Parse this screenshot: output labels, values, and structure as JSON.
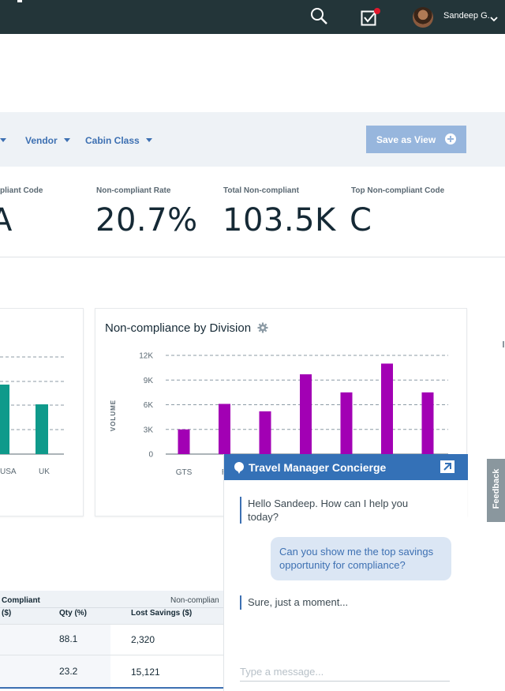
{
  "topbar": {
    "user_name": "Sandeep G.",
    "icons": [
      "search-icon",
      "tasks-check-icon",
      "avatar",
      "chevron-down-icon"
    ],
    "notification_color": "#e0182d"
  },
  "filters": {
    "items": [
      {
        "label": ""
      },
      {
        "label": "Vendor"
      },
      {
        "label": "Cabin Class"
      }
    ],
    "save_view_label": "Save as View"
  },
  "kpis": [
    {
      "label": "pliant Code",
      "value": "A"
    },
    {
      "label": "Non-compliant Rate",
      "value": "20.7%"
    },
    {
      "label": "Total Non-compliant",
      "value": "103.5K"
    },
    {
      "label": "Top Non-compliant Code",
      "value": "C"
    }
  ],
  "left_chart": {
    "categories": [
      "USA",
      "UK"
    ],
    "bar_color": "#0f9a8b"
  },
  "chart": {
    "title": "Non-compliance by Division",
    "ylabel": "VOLUME",
    "yticks": [
      "12K",
      "9K",
      "6K",
      "3K",
      "0"
    ],
    "bar_color": "#a200b4"
  },
  "chart_data": {
    "type": "bar",
    "title": "Non-compliance by Division",
    "ylabel": "VOLUME",
    "xlabel": "",
    "ylim": [
      0,
      12000
    ],
    "categories": [
      "GTS",
      "R",
      "",
      "",
      "",
      "",
      ""
    ],
    "values": [
      3000,
      6100,
      5200,
      9700,
      7500,
      11000,
      7500
    ],
    "grid": true
  },
  "table": {
    "group_headers": [
      "Compliant",
      "Non-complian"
    ],
    "columns": [
      "($)",
      "Qty (%)",
      "Lost Savings ($)"
    ],
    "rows": [
      {
        "qty": "88.1",
        "lost": "2,320"
      },
      {
        "qty": "23.2",
        "lost": "15,121"
      }
    ]
  },
  "concierge": {
    "title": "Travel Manager Concierge",
    "messages": [
      {
        "from": "bot",
        "text": "Hello Sandeep. How can I help you today?"
      },
      {
        "from": "user",
        "text": "Can you show me the top savings opportunity for compliance?"
      },
      {
        "from": "bot",
        "text": "Sure, just a moment..."
      }
    ],
    "input_placeholder": "Type a message..."
  },
  "feedback_label": "Feedback"
}
